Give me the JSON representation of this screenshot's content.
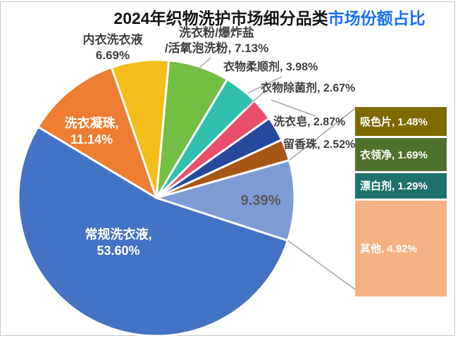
{
  "title": {
    "main": "2024年织物洗护市场细分品类",
    "highlight": "市场份额占比",
    "highlight_color": "#1b6ff2"
  },
  "chart_data": {
    "type": "pie",
    "subtype": "bar-of-pie",
    "title": "2024年织物洗护市场细分品类市场份额占比",
    "unit": "%",
    "start_angle_deg": 108,
    "direction": "clockwise",
    "slices": [
      {
        "label": "常规洗衣液",
        "value": 53.6,
        "pct": "53.60%",
        "color": "#4472c4"
      },
      {
        "label": "洗衣凝珠",
        "value": 11.14,
        "pct": "11.14%",
        "color": "#ed7d31"
      },
      {
        "label": "内衣洗衣液",
        "value": 6.69,
        "pct": "6.69%",
        "color": "#f5bd1a"
      },
      {
        "label": "洗衣粉/爆炸盐/活氧泡洗粉",
        "value": 7.13,
        "pct": "7.13%",
        "color": "#72bf44"
      },
      {
        "label": "衣物柔顺剂",
        "value": 3.98,
        "pct": "3.98%",
        "color": "#30bfad"
      },
      {
        "label": "衣物除菌剂",
        "value": 2.67,
        "pct": "2.67%",
        "color": "#e94e6b"
      },
      {
        "label": "洗衣皂",
        "value": 2.87,
        "pct": "2.87%",
        "color": "#27489b"
      },
      {
        "label": "留香珠",
        "value": 2.52,
        "pct": "2.52%",
        "color": "#a85614"
      },
      {
        "label": "",
        "value": 9.39,
        "pct": "9.39%",
        "color": "#7f9bd5"
      }
    ],
    "breakout": [
      {
        "label": "吸色片",
        "value": 1.48,
        "pct": "1.48%",
        "color": "#7f6a00"
      },
      {
        "label": "衣领净",
        "value": 1.69,
        "pct": "1.69%",
        "color": "#4e712b"
      },
      {
        "label": "漂白剂",
        "value": 1.29,
        "pct": "1.29%",
        "color": "#1f716b"
      },
      {
        "label": "其他",
        "value": 4.92,
        "pct": "4.92%",
        "color": "#f4b183"
      }
    ],
    "line_color": "#a6a6a6"
  }
}
